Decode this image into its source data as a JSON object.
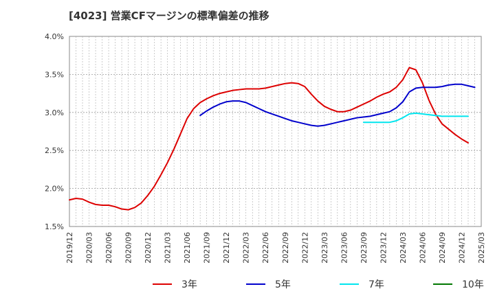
{
  "chart_data": {
    "type": "line",
    "title": "[4023]  営業CFマージンの標準偏差の推移",
    "xlabel": "",
    "ylabel": "",
    "ylim": [
      0.015,
      0.04
    ],
    "y_ticks": [
      0.015,
      0.02,
      0.025,
      0.03,
      0.035,
      0.04
    ],
    "y_tick_labels": [
      "1.5%",
      "2.0%",
      "2.5%",
      "3.0%",
      "3.5%",
      "4.0%"
    ],
    "x_range": [
      "2019/12",
      "2025/03"
    ],
    "x_tick_labels": [
      "2019/12",
      "2020/03",
      "2020/06",
      "2020/09",
      "2020/12",
      "2021/03",
      "2021/06",
      "2021/09",
      "2021/12",
      "2022/03",
      "2022/06",
      "2022/09",
      "2022/12",
      "2023/03",
      "2023/06",
      "2023/09",
      "2023/12",
      "2024/03",
      "2024/06",
      "2024/09",
      "2024/12",
      "2025/03"
    ],
    "grid": true,
    "legend_position": "bottom",
    "series": [
      {
        "name": "3年",
        "color": "#dd0000",
        "points": [
          [
            "2019/12",
            0.0185
          ],
          [
            "2020/01",
            0.0187
          ],
          [
            "2020/02",
            0.0186
          ],
          [
            "2020/03",
            0.0182
          ],
          [
            "2020/04",
            0.0179
          ],
          [
            "2020/05",
            0.0178
          ],
          [
            "2020/06",
            0.0178
          ],
          [
            "2020/07",
            0.0176
          ],
          [
            "2020/08",
            0.0173
          ],
          [
            "2020/09",
            0.0172
          ],
          [
            "2020/10",
            0.0175
          ],
          [
            "2020/11",
            0.0181
          ],
          [
            "2020/12",
            0.0191
          ],
          [
            "2021/01",
            0.0203
          ],
          [
            "2021/02",
            0.0218
          ],
          [
            "2021/03",
            0.0234
          ],
          [
            "2021/04",
            0.0252
          ],
          [
            "2021/05",
            0.0272
          ],
          [
            "2021/06",
            0.0292
          ],
          [
            "2021/07",
            0.0305
          ],
          [
            "2021/08",
            0.0313
          ],
          [
            "2021/09",
            0.0318
          ],
          [
            "2021/10",
            0.0322
          ],
          [
            "2021/11",
            0.0325
          ],
          [
            "2021/12",
            0.0327
          ],
          [
            "2022/01",
            0.0329
          ],
          [
            "2022/02",
            0.033
          ],
          [
            "2022/03",
            0.0331
          ],
          [
            "2022/04",
            0.0331
          ],
          [
            "2022/05",
            0.0331
          ],
          [
            "2022/06",
            0.0332
          ],
          [
            "2022/07",
            0.0334
          ],
          [
            "2022/08",
            0.0336
          ],
          [
            "2022/09",
            0.0338
          ],
          [
            "2022/10",
            0.0339
          ],
          [
            "2022/11",
            0.0338
          ],
          [
            "2022/12",
            0.0334
          ],
          [
            "2023/01",
            0.0324
          ],
          [
            "2023/02",
            0.0315
          ],
          [
            "2023/03",
            0.0308
          ],
          [
            "2023/04",
            0.0304
          ],
          [
            "2023/05",
            0.0301
          ],
          [
            "2023/06",
            0.0301
          ],
          [
            "2023/07",
            0.0303
          ],
          [
            "2023/08",
            0.0307
          ],
          [
            "2023/09",
            0.0311
          ],
          [
            "2023/10",
            0.0315
          ],
          [
            "2023/11",
            0.032
          ],
          [
            "2023/12",
            0.0324
          ],
          [
            "2024/01",
            0.0327
          ],
          [
            "2024/02",
            0.0333
          ],
          [
            "2024/03",
            0.0343
          ],
          [
            "2024/04",
            0.0359
          ],
          [
            "2024/05",
            0.0356
          ],
          [
            "2024/06",
            0.0339
          ],
          [
            "2024/07",
            0.0316
          ],
          [
            "2024/08",
            0.0298
          ],
          [
            "2024/09",
            0.0285
          ],
          [
            "2024/10",
            0.0278
          ],
          [
            "2024/11",
            0.0271
          ],
          [
            "2024/12",
            0.0265
          ],
          [
            "2025/01",
            0.026
          ]
        ]
      },
      {
        "name": "5年",
        "color": "#0000cc",
        "points": [
          [
            "2021/08",
            0.0296
          ],
          [
            "2021/09",
            0.0302
          ],
          [
            "2021/10",
            0.0307
          ],
          [
            "2021/11",
            0.0311
          ],
          [
            "2021/12",
            0.0314
          ],
          [
            "2022/01",
            0.0315
          ],
          [
            "2022/02",
            0.0315
          ],
          [
            "2022/03",
            0.0313
          ],
          [
            "2022/04",
            0.0309
          ],
          [
            "2022/05",
            0.0305
          ],
          [
            "2022/06",
            0.0301
          ],
          [
            "2022/07",
            0.0298
          ],
          [
            "2022/08",
            0.0295
          ],
          [
            "2022/09",
            0.0292
          ],
          [
            "2022/10",
            0.0289
          ],
          [
            "2022/11",
            0.0287
          ],
          [
            "2022/12",
            0.0285
          ],
          [
            "2023/01",
            0.0283
          ],
          [
            "2023/02",
            0.0282
          ],
          [
            "2023/03",
            0.0283
          ],
          [
            "2023/04",
            0.0285
          ],
          [
            "2023/05",
            0.0287
          ],
          [
            "2023/06",
            0.0289
          ],
          [
            "2023/07",
            0.0291
          ],
          [
            "2023/08",
            0.0293
          ],
          [
            "2023/09",
            0.0294
          ],
          [
            "2023/10",
            0.0295
          ],
          [
            "2023/11",
            0.0297
          ],
          [
            "2023/12",
            0.0299
          ],
          [
            "2024/01",
            0.0301
          ],
          [
            "2024/02",
            0.0306
          ],
          [
            "2024/03",
            0.0314
          ],
          [
            "2024/04",
            0.0327
          ],
          [
            "2024/05",
            0.0332
          ],
          [
            "2024/06",
            0.0333
          ],
          [
            "2024/07",
            0.0333
          ],
          [
            "2024/08",
            0.0333
          ],
          [
            "2024/09",
            0.0334
          ],
          [
            "2024/10",
            0.0336
          ],
          [
            "2024/11",
            0.0337
          ],
          [
            "2024/12",
            0.0337
          ],
          [
            "2025/01",
            0.0335
          ],
          [
            "2025/02",
            0.0333
          ]
        ]
      },
      {
        "name": "7年",
        "color": "#00e5ee",
        "points": [
          [
            "2023/09",
            0.0287
          ],
          [
            "2023/10",
            0.0287
          ],
          [
            "2023/11",
            0.0287
          ],
          [
            "2023/12",
            0.0287
          ],
          [
            "2024/01",
            0.0287
          ],
          [
            "2024/02",
            0.0289
          ],
          [
            "2024/03",
            0.0293
          ],
          [
            "2024/04",
            0.0298
          ],
          [
            "2024/05",
            0.0299
          ],
          [
            "2024/06",
            0.0298
          ],
          [
            "2024/07",
            0.0297
          ],
          [
            "2024/08",
            0.0296
          ],
          [
            "2024/09",
            0.0295
          ],
          [
            "2024/10",
            0.0295
          ],
          [
            "2024/11",
            0.0295
          ],
          [
            "2024/12",
            0.0295
          ],
          [
            "2025/01",
            0.0295
          ]
        ]
      },
      {
        "name": "10年",
        "color": "#007700",
        "points": []
      }
    ]
  }
}
